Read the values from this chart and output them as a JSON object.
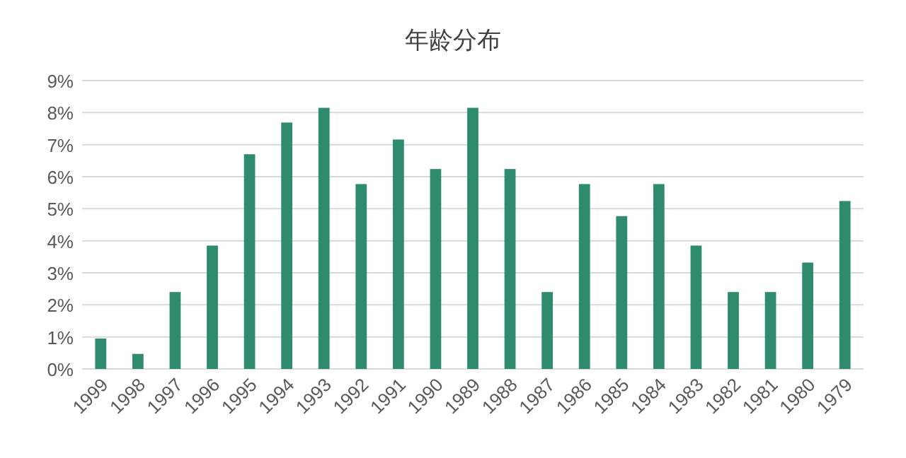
{
  "chart_data": {
    "type": "bar",
    "title": "年龄分布",
    "categories": [
      "1999",
      "1998",
      "1997",
      "1996",
      "1995",
      "1994",
      "1993",
      "1992",
      "1991",
      "1990",
      "1989",
      "1988",
      "1987",
      "1986",
      "1985",
      "1984",
      "1983",
      "1982",
      "1981",
      "1980",
      "1979"
    ],
    "values": [
      0.95,
      0.47,
      2.4,
      3.85,
      6.7,
      7.69,
      8.15,
      5.77,
      7.16,
      6.24,
      8.15,
      6.24,
      2.4,
      5.77,
      4.77,
      5.77,
      3.85,
      2.4,
      2.4,
      3.32,
      5.24
    ],
    "color": "#2e8b6f",
    "ylim": [
      0,
      9
    ],
    "yticks": [
      {
        "value": 0,
        "label": "0%"
      },
      {
        "value": 1,
        "label": "1%"
      },
      {
        "value": 2,
        "label": "2%"
      },
      {
        "value": 3,
        "label": "3%"
      },
      {
        "value": 4,
        "label": "4%"
      },
      {
        "value": 5,
        "label": "5%"
      },
      {
        "value": 6,
        "label": "6%"
      },
      {
        "value": 7,
        "label": "7%"
      },
      {
        "value": 8,
        "label": "8%"
      },
      {
        "value": 9,
        "label": "9%"
      }
    ],
    "grid": "y"
  }
}
